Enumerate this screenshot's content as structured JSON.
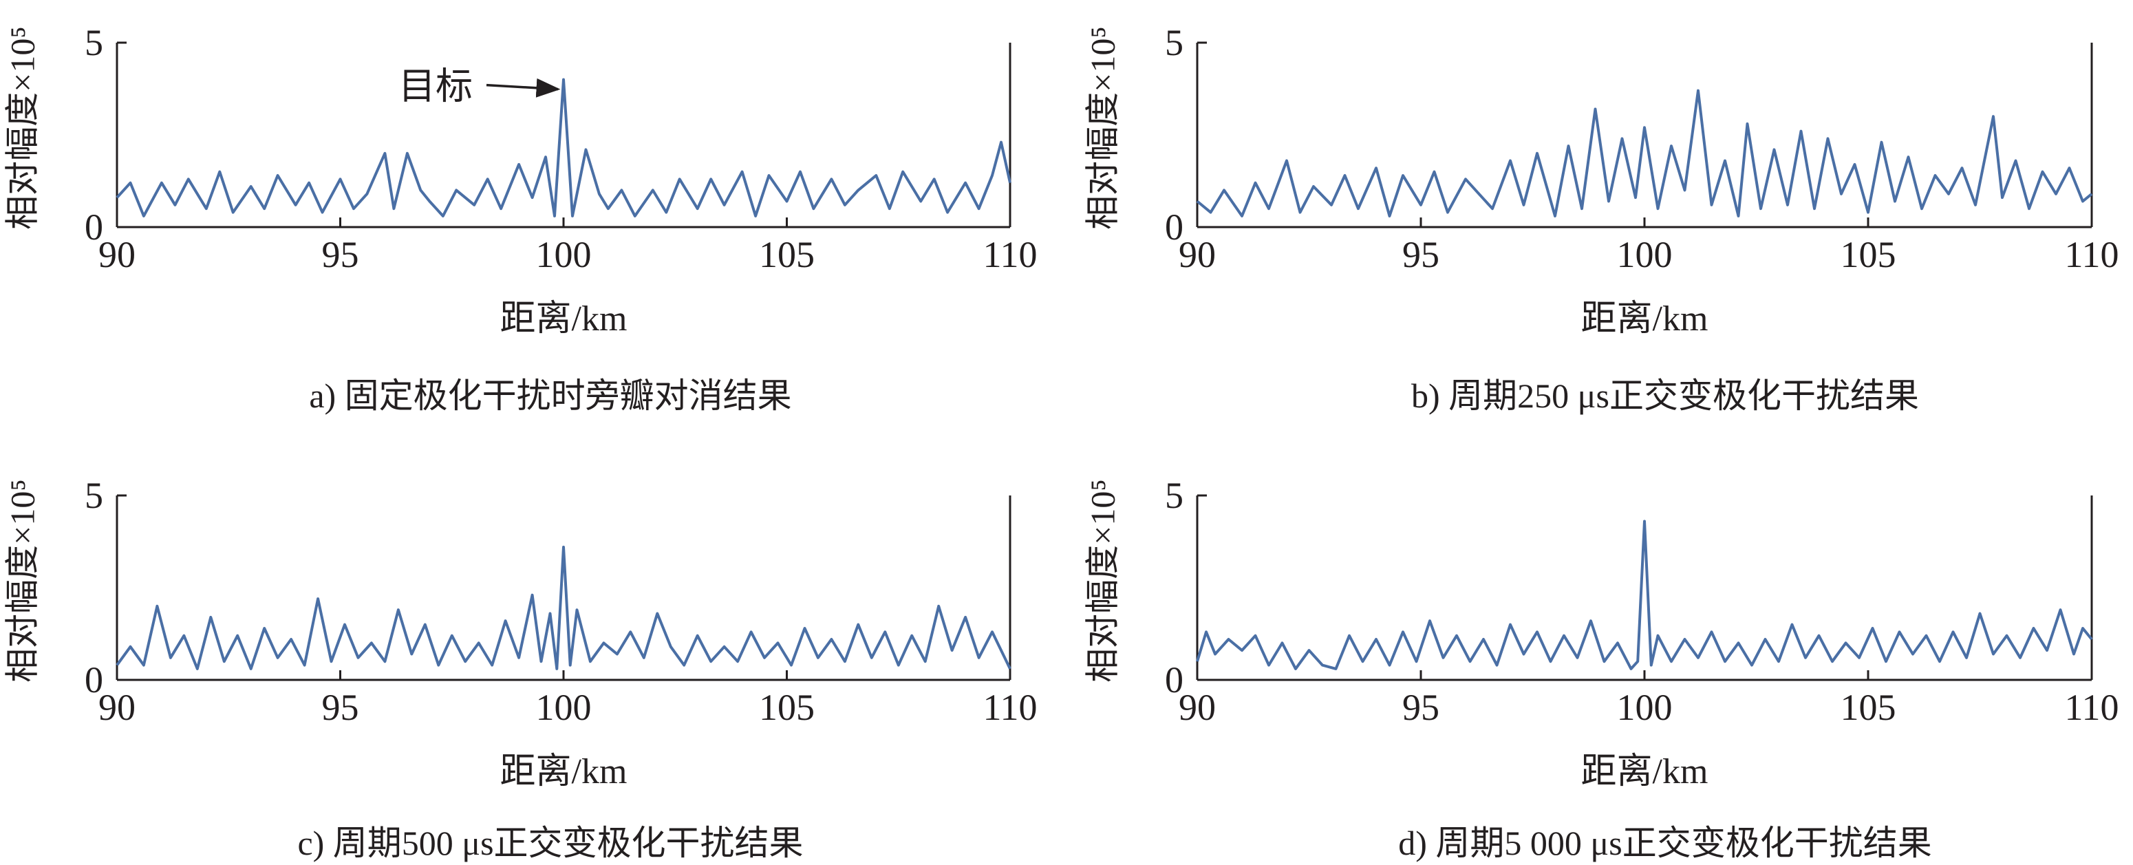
{
  "chart_data": [
    {
      "id": "a",
      "type": "line",
      "caption": "a) 固定极化干扰时旁瓣对消结果",
      "xlabel": "距离/km",
      "ylabel": "相对幅度×10⁵",
      "xlim": [
        90,
        110
      ],
      "ylim": [
        0,
        5
      ],
      "xticks": [
        "90",
        "95",
        "100",
        "105",
        "110"
      ],
      "yticks": [
        "0",
        "5"
      ],
      "series": [
        {
          "color": "#4a6fa5",
          "x": [
            90.0,
            90.3,
            90.6,
            91.0,
            91.3,
            91.6,
            92.0,
            92.3,
            92.6,
            93.0,
            93.3,
            93.6,
            94.0,
            94.3,
            94.6,
            95.0,
            95.3,
            95.6,
            96.0,
            96.2,
            96.5,
            96.8,
            97.0,
            97.3,
            97.6,
            98.0,
            98.3,
            98.6,
            99.0,
            99.3,
            99.6,
            99.8,
            100.0,
            100.2,
            100.5,
            100.8,
            101.0,
            101.3,
            101.6,
            102.0,
            102.3,
            102.6,
            103.0,
            103.3,
            103.6,
            104.0,
            104.3,
            104.6,
            105.0,
            105.3,
            105.6,
            106.0,
            106.3,
            106.6,
            107.0,
            107.3,
            107.6,
            108.0,
            108.3,
            108.6,
            109.0,
            109.3,
            109.6,
            109.8,
            110.0
          ],
          "y": [
            0.8,
            1.2,
            0.3,
            1.2,
            0.6,
            1.3,
            0.5,
            1.5,
            0.4,
            1.1,
            0.5,
            1.4,
            0.6,
            1.2,
            0.4,
            1.3,
            0.5,
            0.9,
            2.0,
            0.5,
            2.0,
            1.0,
            0.7,
            0.3,
            1.0,
            0.6,
            1.3,
            0.5,
            1.7,
            0.8,
            1.9,
            0.3,
            4.0,
            0.3,
            2.1,
            0.9,
            0.5,
            1.0,
            0.3,
            1.0,
            0.4,
            1.3,
            0.5,
            1.3,
            0.6,
            1.5,
            0.3,
            1.4,
            0.7,
            1.5,
            0.5,
            1.3,
            0.6,
            1.0,
            1.4,
            0.5,
            1.5,
            0.7,
            1.3,
            0.4,
            1.2,
            0.5,
            1.4,
            2.3,
            1.2
          ]
        }
      ],
      "annotation": {
        "text": "目标",
        "x": 100.0,
        "y": 4.0
      }
    },
    {
      "id": "b",
      "type": "line",
      "caption": "b) 周期250 μs正交变极化干扰结果",
      "xlabel": "距离/km",
      "ylabel": "相对幅度×10⁵",
      "xlim": [
        90,
        110
      ],
      "ylim": [
        0,
        5
      ],
      "xticks": [
        "90",
        "95",
        "100",
        "105",
        "110"
      ],
      "yticks": [
        "0",
        "5"
      ],
      "series": [
        {
          "color": "#4a6fa5",
          "x": [
            90.0,
            90.3,
            90.6,
            91.0,
            91.3,
            91.6,
            92.0,
            92.3,
            92.6,
            93.0,
            93.3,
            93.6,
            94.0,
            94.3,
            94.6,
            95.0,
            95.3,
            95.6,
            96.0,
            96.3,
            96.6,
            97.0,
            97.3,
            97.6,
            98.0,
            98.3,
            98.6,
            98.9,
            99.2,
            99.5,
            99.8,
            100.0,
            100.3,
            100.6,
            100.9,
            101.2,
            101.5,
            101.8,
            102.1,
            102.3,
            102.6,
            102.9,
            103.2,
            103.5,
            103.8,
            104.1,
            104.4,
            104.7,
            105.0,
            105.3,
            105.6,
            105.9,
            106.2,
            106.5,
            106.8,
            107.1,
            107.4,
            107.8,
            108.0,
            108.3,
            108.6,
            108.9,
            109.2,
            109.5,
            109.8,
            110.0
          ],
          "y": [
            0.7,
            0.4,
            1.0,
            0.3,
            1.2,
            0.5,
            1.8,
            0.4,
            1.1,
            0.6,
            1.4,
            0.5,
            1.6,
            0.3,
            1.4,
            0.6,
            1.5,
            0.4,
            1.3,
            0.9,
            0.5,
            1.8,
            0.6,
            2.0,
            0.3,
            2.2,
            0.5,
            3.2,
            0.7,
            2.4,
            0.8,
            2.7,
            0.5,
            2.2,
            1.0,
            3.7,
            0.6,
            1.8,
            0.3,
            2.8,
            0.5,
            2.1,
            0.6,
            2.6,
            0.5,
            2.4,
            0.9,
            1.7,
            0.4,
            2.3,
            0.7,
            1.9,
            0.5,
            1.4,
            0.9,
            1.6,
            0.6,
            3.0,
            0.8,
            1.8,
            0.5,
            1.5,
            0.9,
            1.6,
            0.7,
            0.9
          ]
        }
      ]
    },
    {
      "id": "c",
      "type": "line",
      "caption": "c) 周期500 μs正交变极化干扰结果",
      "xlabel": "距离/km",
      "ylabel": "相对幅度×10⁵",
      "xlim": [
        90,
        110
      ],
      "ylim": [
        0,
        5
      ],
      "xticks": [
        "90",
        "95",
        "100",
        "105",
        "110"
      ],
      "yticks": [
        "0",
        "5"
      ],
      "series": [
        {
          "color": "#4a6fa5",
          "x": [
            90.0,
            90.3,
            90.6,
            90.9,
            91.2,
            91.5,
            91.8,
            92.1,
            92.4,
            92.7,
            93.0,
            93.3,
            93.6,
            93.9,
            94.2,
            94.5,
            94.8,
            95.1,
            95.4,
            95.7,
            96.0,
            96.3,
            96.6,
            96.9,
            97.2,
            97.5,
            97.8,
            98.1,
            98.4,
            98.7,
            99.0,
            99.3,
            99.5,
            99.7,
            99.85,
            100.0,
            100.15,
            100.3,
            100.6,
            100.9,
            101.2,
            101.5,
            101.8,
            102.1,
            102.4,
            102.7,
            103.0,
            103.3,
            103.6,
            103.9,
            104.2,
            104.5,
            104.8,
            105.1,
            105.4,
            105.7,
            106.0,
            106.3,
            106.6,
            106.9,
            107.2,
            107.5,
            107.8,
            108.1,
            108.4,
            108.7,
            109.0,
            109.3,
            109.6,
            110.0
          ],
          "y": [
            0.4,
            0.9,
            0.4,
            2.0,
            0.6,
            1.2,
            0.3,
            1.7,
            0.5,
            1.2,
            0.3,
            1.4,
            0.6,
            1.1,
            0.4,
            2.2,
            0.5,
            1.5,
            0.6,
            1.0,
            0.5,
            1.9,
            0.7,
            1.5,
            0.4,
            1.2,
            0.5,
            1.0,
            0.4,
            1.6,
            0.6,
            2.3,
            0.5,
            1.8,
            0.3,
            3.6,
            0.4,
            1.9,
            0.5,
            1.0,
            0.7,
            1.3,
            0.6,
            1.8,
            0.9,
            0.4,
            1.2,
            0.5,
            0.9,
            0.5,
            1.3,
            0.6,
            1.0,
            0.4,
            1.4,
            0.6,
            1.1,
            0.5,
            1.5,
            0.6,
            1.3,
            0.4,
            1.2,
            0.5,
            2.0,
            0.8,
            1.7,
            0.6,
            1.3,
            0.3
          ]
        }
      ]
    },
    {
      "id": "d",
      "type": "line",
      "caption": "d) 周期5 000 μs正交变极化干扰结果",
      "xlabel": "距离/km",
      "ylabel": "相对幅度×10⁵",
      "xlim": [
        90,
        110
      ],
      "ylim": [
        0,
        5
      ],
      "xticks": [
        "90",
        "95",
        "100",
        "105",
        "110"
      ],
      "yticks": [
        "0",
        "5"
      ],
      "series": [
        {
          "color": "#4a6fa5",
          "x": [
            90.0,
            90.2,
            90.4,
            90.7,
            91.0,
            91.3,
            91.6,
            91.9,
            92.2,
            92.5,
            92.8,
            93.1,
            93.4,
            93.7,
            94.0,
            94.3,
            94.6,
            94.9,
            95.2,
            95.5,
            95.8,
            96.1,
            96.4,
            96.7,
            97.0,
            97.3,
            97.6,
            97.9,
            98.2,
            98.5,
            98.8,
            99.1,
            99.4,
            99.7,
            99.85,
            100.0,
            100.15,
            100.3,
            100.6,
            100.9,
            101.2,
            101.5,
            101.8,
            102.1,
            102.4,
            102.7,
            103.0,
            103.3,
            103.6,
            103.9,
            104.2,
            104.5,
            104.8,
            105.1,
            105.4,
            105.7,
            106.0,
            106.3,
            106.6,
            106.9,
            107.2,
            107.5,
            107.8,
            108.1,
            108.4,
            108.7,
            109.0,
            109.3,
            109.6,
            109.8,
            110.0
          ],
          "y": [
            0.5,
            1.3,
            0.7,
            1.1,
            0.8,
            1.2,
            0.4,
            1.0,
            0.3,
            0.8,
            0.4,
            0.3,
            1.2,
            0.5,
            1.1,
            0.4,
            1.3,
            0.5,
            1.6,
            0.6,
            1.2,
            0.5,
            1.1,
            0.4,
            1.5,
            0.7,
            1.3,
            0.5,
            1.2,
            0.6,
            1.6,
            0.5,
            1.0,
            0.3,
            0.5,
            4.3,
            0.4,
            1.2,
            0.5,
            1.1,
            0.6,
            1.3,
            0.5,
            1.0,
            0.4,
            1.1,
            0.5,
            1.5,
            0.6,
            1.2,
            0.5,
            1.0,
            0.6,
            1.4,
            0.5,
            1.3,
            0.7,
            1.2,
            0.5,
            1.3,
            0.6,
            1.8,
            0.7,
            1.2,
            0.6,
            1.4,
            0.8,
            1.9,
            0.7,
            1.4,
            1.1
          ]
        }
      ]
    }
  ]
}
